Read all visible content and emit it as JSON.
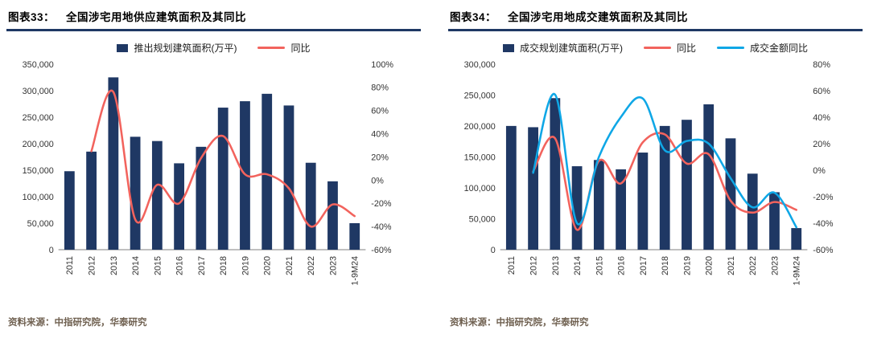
{
  "page": {
    "background": "#ffffff"
  },
  "colors": {
    "bar_navy": "#1f3864",
    "line_red": "#f2635d",
    "line_blue": "#0fa7e6",
    "title_underline": "#1f3864",
    "axis_text": "#333333",
    "source_text": "#6f6050"
  },
  "chart_data": [
    {
      "type": "bar+line",
      "figure_label": "图表33：",
      "title": "全国涉宅用地供应建筑面积及其同比",
      "source_note": "资料来源：中指研究院，华泰研究",
      "categories": [
        "2011",
        "2012",
        "2013",
        "2014",
        "2015",
        "2016",
        "2017",
        "2018",
        "2019",
        "2020",
        "2021",
        "2022",
        "2023",
        "1-9M24"
      ],
      "series": [
        {
          "name": "推出规划建筑面积(万平)",
          "type": "bar",
          "axis": "left",
          "color": "#1f3864",
          "values": [
            148000,
            185000,
            325000,
            213000,
            205000,
            163000,
            194000,
            268000,
            280000,
            294000,
            272000,
            164000,
            129000,
            50000
          ]
        },
        {
          "name": "同比",
          "type": "line",
          "axis": "right",
          "color": "#f2635d",
          "values": [
            null,
            25,
            76,
            -34,
            -4,
            -20,
            19,
            38,
            5,
            5,
            -7,
            -40,
            -21,
            -31
          ]
        }
      ],
      "left_axis": {
        "min": 0,
        "max": 350000,
        "step": 50000
      },
      "right_axis": {
        "min": -60,
        "max": 100,
        "step": 20,
        "unit": "%"
      },
      "legend_position": "top",
      "grid": false
    },
    {
      "type": "bar+line",
      "figure_label": "图表34：",
      "title": "全国涉宅用地成交建筑面积及其同比",
      "source_note": "资料来源：中指研究院，华泰研究",
      "categories": [
        "2011",
        "2012",
        "2013",
        "2014",
        "2015",
        "2016",
        "2017",
        "2018",
        "2019",
        "2020",
        "2021",
        "2022",
        "2023",
        "1-9M24"
      ],
      "series": [
        {
          "name": "成交规划建筑面积(万平)",
          "type": "bar",
          "axis": "left",
          "color": "#1f3864",
          "values": [
            200000,
            198000,
            245000,
            135000,
            145000,
            130000,
            157000,
            200000,
            210000,
            235000,
            180000,
            123000,
            93000,
            35000
          ]
        },
        {
          "name": "同比",
          "type": "line",
          "axis": "right",
          "color": "#f2635d",
          "values": [
            null,
            -1,
            24,
            -45,
            7,
            -10,
            21,
            27,
            5,
            12,
            -23,
            -32,
            -24,
            -30
          ]
        },
        {
          "name": "成交金额同比",
          "type": "line",
          "axis": "right",
          "color": "#0fa7e6",
          "values": [
            null,
            -2,
            57,
            -40,
            10,
            40,
            54,
            15,
            22,
            20,
            -6,
            -28,
            -17,
            -43
          ]
        }
      ],
      "left_axis": {
        "min": 0,
        "max": 300000,
        "step": 50000
      },
      "right_axis": {
        "min": -60,
        "max": 80,
        "step": 20,
        "unit": "%"
      },
      "legend_position": "top",
      "grid": false
    }
  ]
}
